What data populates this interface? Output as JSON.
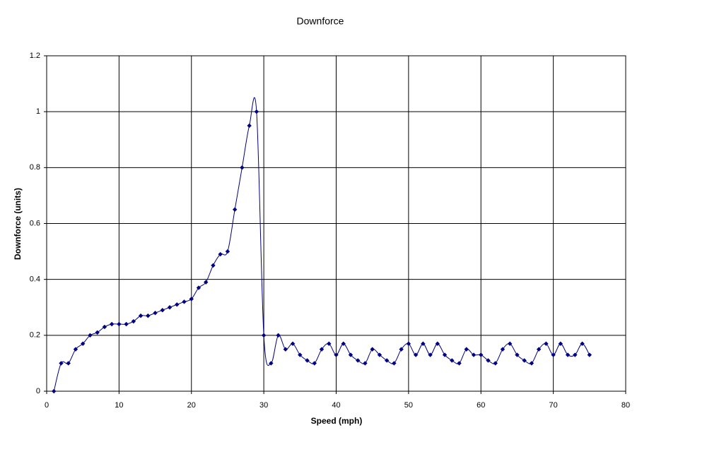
{
  "chart_data": {
    "type": "line",
    "title": "Downforce",
    "x_label": "Speed (mph)",
    "y_label": "Downforce (units)",
    "x": [
      1,
      2,
      3,
      4,
      5,
      6,
      7,
      8,
      9,
      10,
      11,
      12,
      13,
      14,
      15,
      16,
      17,
      18,
      19,
      20,
      21,
      22,
      23,
      24,
      25,
      26,
      27,
      28,
      29,
      30,
      31,
      32,
      33,
      34,
      35,
      36,
      37,
      38,
      39,
      40,
      41,
      42,
      43,
      44,
      45,
      46,
      47,
      48,
      49,
      50,
      51,
      52,
      53,
      54,
      55,
      56,
      57,
      58,
      59,
      60,
      61,
      62,
      63,
      64,
      65,
      66,
      67,
      68,
      69,
      70,
      71,
      72,
      73,
      74,
      75
    ],
    "series": [
      {
        "color": "#000080",
        "values": [
          0,
          0.1,
          0.1,
          0.15,
          0.17,
          0.2,
          0.21,
          0.23,
          0.24,
          0.24,
          0.24,
          0.25,
          0.27,
          0.27,
          0.28,
          0.29,
          0.3,
          0.31,
          0.32,
          0.33,
          0.37,
          0.39,
          0.45,
          0.49,
          0.5,
          0.65,
          0.8,
          0.95,
          1.0,
          0.2,
          0.1,
          0.2,
          0.15,
          0.17,
          0.13,
          0.11,
          0.1,
          0.15,
          0.17,
          0.13,
          0.17,
          0.13,
          0.11,
          0.1,
          0.15,
          0.13,
          0.11,
          0.1,
          0.15,
          0.17,
          0.13,
          0.17,
          0.13,
          0.17,
          0.13,
          0.11,
          0.1,
          0.15,
          0.13,
          0.13,
          0.11,
          0.1,
          0.15,
          0.17,
          0.13,
          0.11,
          0.1,
          0.15,
          0.17,
          0.13,
          0.17,
          0.13,
          0.13,
          0.17,
          0.13
        ]
      }
    ],
    "xlim": [
      0,
      80
    ],
    "xticks": [
      0,
      10,
      20,
      30,
      40,
      50,
      60,
      70,
      80
    ],
    "ylim": [
      0,
      1.2
    ],
    "yticks": [
      0,
      0.2,
      0.4,
      0.6,
      0.8,
      1,
      1.2
    ],
    "grid": true
  }
}
